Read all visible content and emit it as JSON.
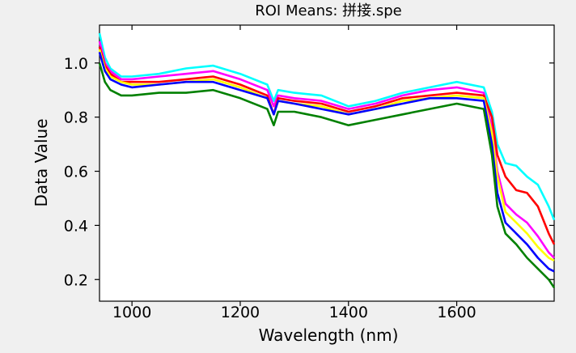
{
  "chart_data": {
    "type": "line",
    "title": "ROI Means: 拼接.spe",
    "xlabel": "Wavelength (nm)",
    "ylabel": "Data Value",
    "xlim": [
      940,
      1780
    ],
    "ylim": [
      0.12,
      1.14
    ],
    "xticks": [
      1000,
      1200,
      1400,
      1600
    ],
    "yticks": [
      0.2,
      0.4,
      0.6,
      0.8,
      1.0
    ],
    "ytick_labels": [
      "0.2",
      "0.4",
      "0.6",
      "0.8",
      "1.0"
    ],
    "grid": false,
    "legend": "none",
    "series": [
      {
        "color": "#00ffff",
        "x": [
          940,
          950,
          960,
          980,
          1000,
          1050,
          1100,
          1150,
          1200,
          1250,
          1262,
          1270,
          1300,
          1350,
          1400,
          1450,
          1500,
          1550,
          1600,
          1650,
          1665,
          1675,
          1690,
          1710,
          1730,
          1750,
          1770,
          1780
        ],
        "y": [
          1.11,
          1.02,
          0.98,
          0.95,
          0.95,
          0.96,
          0.98,
          0.99,
          0.96,
          0.92,
          0.86,
          0.9,
          0.89,
          0.88,
          0.84,
          0.86,
          0.89,
          0.91,
          0.93,
          0.91,
          0.82,
          0.7,
          0.63,
          0.62,
          0.58,
          0.55,
          0.47,
          0.42
        ]
      },
      {
        "color": "#ff00ff",
        "x": [
          940,
          950,
          960,
          980,
          1000,
          1050,
          1100,
          1150,
          1200,
          1250,
          1262,
          1270,
          1300,
          1350,
          1400,
          1450,
          1500,
          1550,
          1600,
          1650,
          1665,
          1675,
          1690,
          1710,
          1730,
          1750,
          1770,
          1780
        ],
        "y": [
          1.08,
          1.0,
          0.97,
          0.94,
          0.94,
          0.95,
          0.96,
          0.97,
          0.94,
          0.9,
          0.84,
          0.88,
          0.87,
          0.86,
          0.83,
          0.85,
          0.88,
          0.9,
          0.91,
          0.89,
          0.76,
          0.6,
          0.48,
          0.44,
          0.41,
          0.36,
          0.3,
          0.28
        ]
      },
      {
        "color": "#ff0000",
        "x": [
          940,
          950,
          960,
          980,
          1000,
          1050,
          1100,
          1150,
          1200,
          1250,
          1262,
          1270,
          1300,
          1350,
          1400,
          1450,
          1500,
          1550,
          1600,
          1650,
          1665,
          1675,
          1690,
          1710,
          1730,
          1750,
          1770,
          1780
        ],
        "y": [
          1.06,
          0.99,
          0.96,
          0.93,
          0.93,
          0.93,
          0.94,
          0.95,
          0.92,
          0.88,
          0.81,
          0.87,
          0.86,
          0.85,
          0.82,
          0.84,
          0.87,
          0.88,
          0.89,
          0.88,
          0.8,
          0.66,
          0.58,
          0.53,
          0.52,
          0.47,
          0.37,
          0.33
        ]
      },
      {
        "color": "#ffff00",
        "x": [
          940,
          950,
          960,
          980,
          1000,
          1050,
          1100,
          1150,
          1200,
          1250,
          1262,
          1270,
          1300,
          1350,
          1400,
          1450,
          1500,
          1550,
          1600,
          1650,
          1665,
          1675,
          1690,
          1710,
          1730,
          1750,
          1770,
          1780
        ],
        "y": [
          1.05,
          0.98,
          0.95,
          0.93,
          0.92,
          0.92,
          0.93,
          0.94,
          0.91,
          0.87,
          0.81,
          0.86,
          0.85,
          0.84,
          0.81,
          0.83,
          0.86,
          0.87,
          0.88,
          0.87,
          0.74,
          0.58,
          0.45,
          0.41,
          0.37,
          0.32,
          0.28,
          0.27
        ]
      },
      {
        "color": "#0000ff",
        "x": [
          940,
          950,
          960,
          980,
          1000,
          1050,
          1100,
          1150,
          1200,
          1250,
          1262,
          1270,
          1300,
          1350,
          1400,
          1450,
          1500,
          1550,
          1600,
          1650,
          1665,
          1675,
          1690,
          1710,
          1730,
          1750,
          1770,
          1780
        ],
        "y": [
          1.04,
          0.97,
          0.94,
          0.92,
          0.91,
          0.92,
          0.93,
          0.93,
          0.9,
          0.87,
          0.81,
          0.86,
          0.85,
          0.83,
          0.81,
          0.83,
          0.85,
          0.87,
          0.87,
          0.86,
          0.7,
          0.52,
          0.41,
          0.37,
          0.33,
          0.28,
          0.24,
          0.23
        ]
      },
      {
        "color": "#008000",
        "x": [
          940,
          950,
          960,
          980,
          1000,
          1050,
          1100,
          1150,
          1200,
          1250,
          1262,
          1270,
          1300,
          1350,
          1400,
          1450,
          1500,
          1550,
          1600,
          1650,
          1665,
          1675,
          1690,
          1710,
          1730,
          1750,
          1770,
          1780
        ],
        "y": [
          1.0,
          0.93,
          0.9,
          0.88,
          0.88,
          0.89,
          0.89,
          0.9,
          0.87,
          0.83,
          0.77,
          0.82,
          0.82,
          0.8,
          0.77,
          0.79,
          0.81,
          0.83,
          0.85,
          0.83,
          0.66,
          0.47,
          0.37,
          0.33,
          0.28,
          0.24,
          0.2,
          0.17
        ]
      }
    ]
  }
}
